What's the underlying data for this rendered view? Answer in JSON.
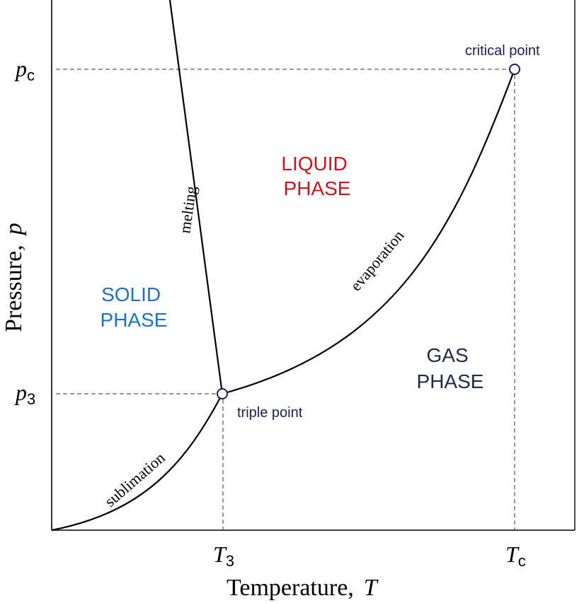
{
  "axes": {
    "x_label": "Temperature,",
    "x_symbol": "T",
    "y_label": "Pressure,",
    "y_symbol": "p"
  },
  "ticks": {
    "x": [
      {
        "base": "T",
        "sub": "3"
      },
      {
        "base": "T",
        "sub": "c"
      }
    ],
    "y": [
      {
        "base": "p",
        "sub": "c"
      },
      {
        "base": "p",
        "sub": "3"
      }
    ]
  },
  "regions": {
    "solid": {
      "line1": "SOLID",
      "line2": "PHASE"
    },
    "liquid": {
      "line1": "LIQUID",
      "line2": "PHASE"
    },
    "gas": {
      "line1": "GAS",
      "line2": "PHASE"
    }
  },
  "curves": {
    "melting": "melting",
    "evaporation": "evaporation",
    "sublimation": "sublimation"
  },
  "points": {
    "triple": "triple point",
    "critical": "critical point"
  },
  "colors": {
    "solid": "#1a73c9",
    "liquid": "#d0121b",
    "gas": "#222a44",
    "point_label": "#1c1c5e",
    "line": "#000000"
  }
}
